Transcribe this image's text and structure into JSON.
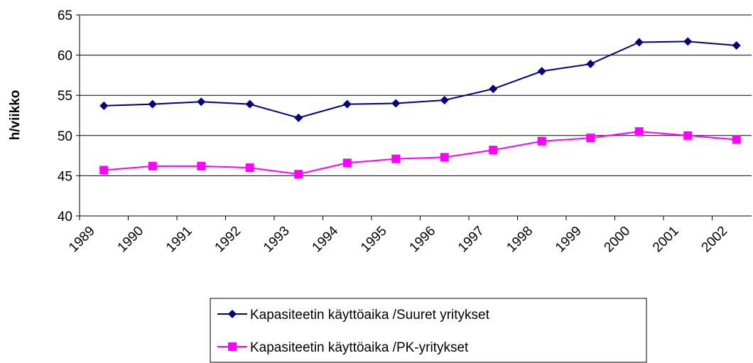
{
  "chart_data": {
    "type": "line",
    "y_label": "h/viikko",
    "categories": [
      "1989",
      "1990",
      "1991",
      "1992",
      "1993",
      "1994",
      "1995",
      "1996",
      "1997",
      "1998",
      "1999",
      "2000",
      "2001",
      "2002"
    ],
    "series": [
      {
        "name": "Kapasiteetin käyttöaika /Suuret yritykset",
        "color": "#000080",
        "marker": "diamond",
        "values": [
          53.7,
          53.9,
          54.2,
          53.9,
          52.2,
          53.9,
          54.0,
          54.4,
          55.8,
          58.0,
          58.9,
          61.6,
          61.7,
          61.2
        ]
      },
      {
        "name": "Kapasiteetin käyttöaika /PK-yritykset",
        "color": "#ff00ff",
        "marker": "square",
        "values": [
          45.7,
          46.2,
          46.2,
          46.0,
          45.2,
          46.6,
          47.1,
          47.3,
          48.2,
          49.3,
          49.7,
          50.5,
          50.0,
          49.5
        ]
      }
    ],
    "ylim": [
      40,
      65
    ],
    "yticks": [
      40,
      45,
      50,
      55,
      60,
      65
    ],
    "grid": true,
    "legend": "bottom"
  }
}
